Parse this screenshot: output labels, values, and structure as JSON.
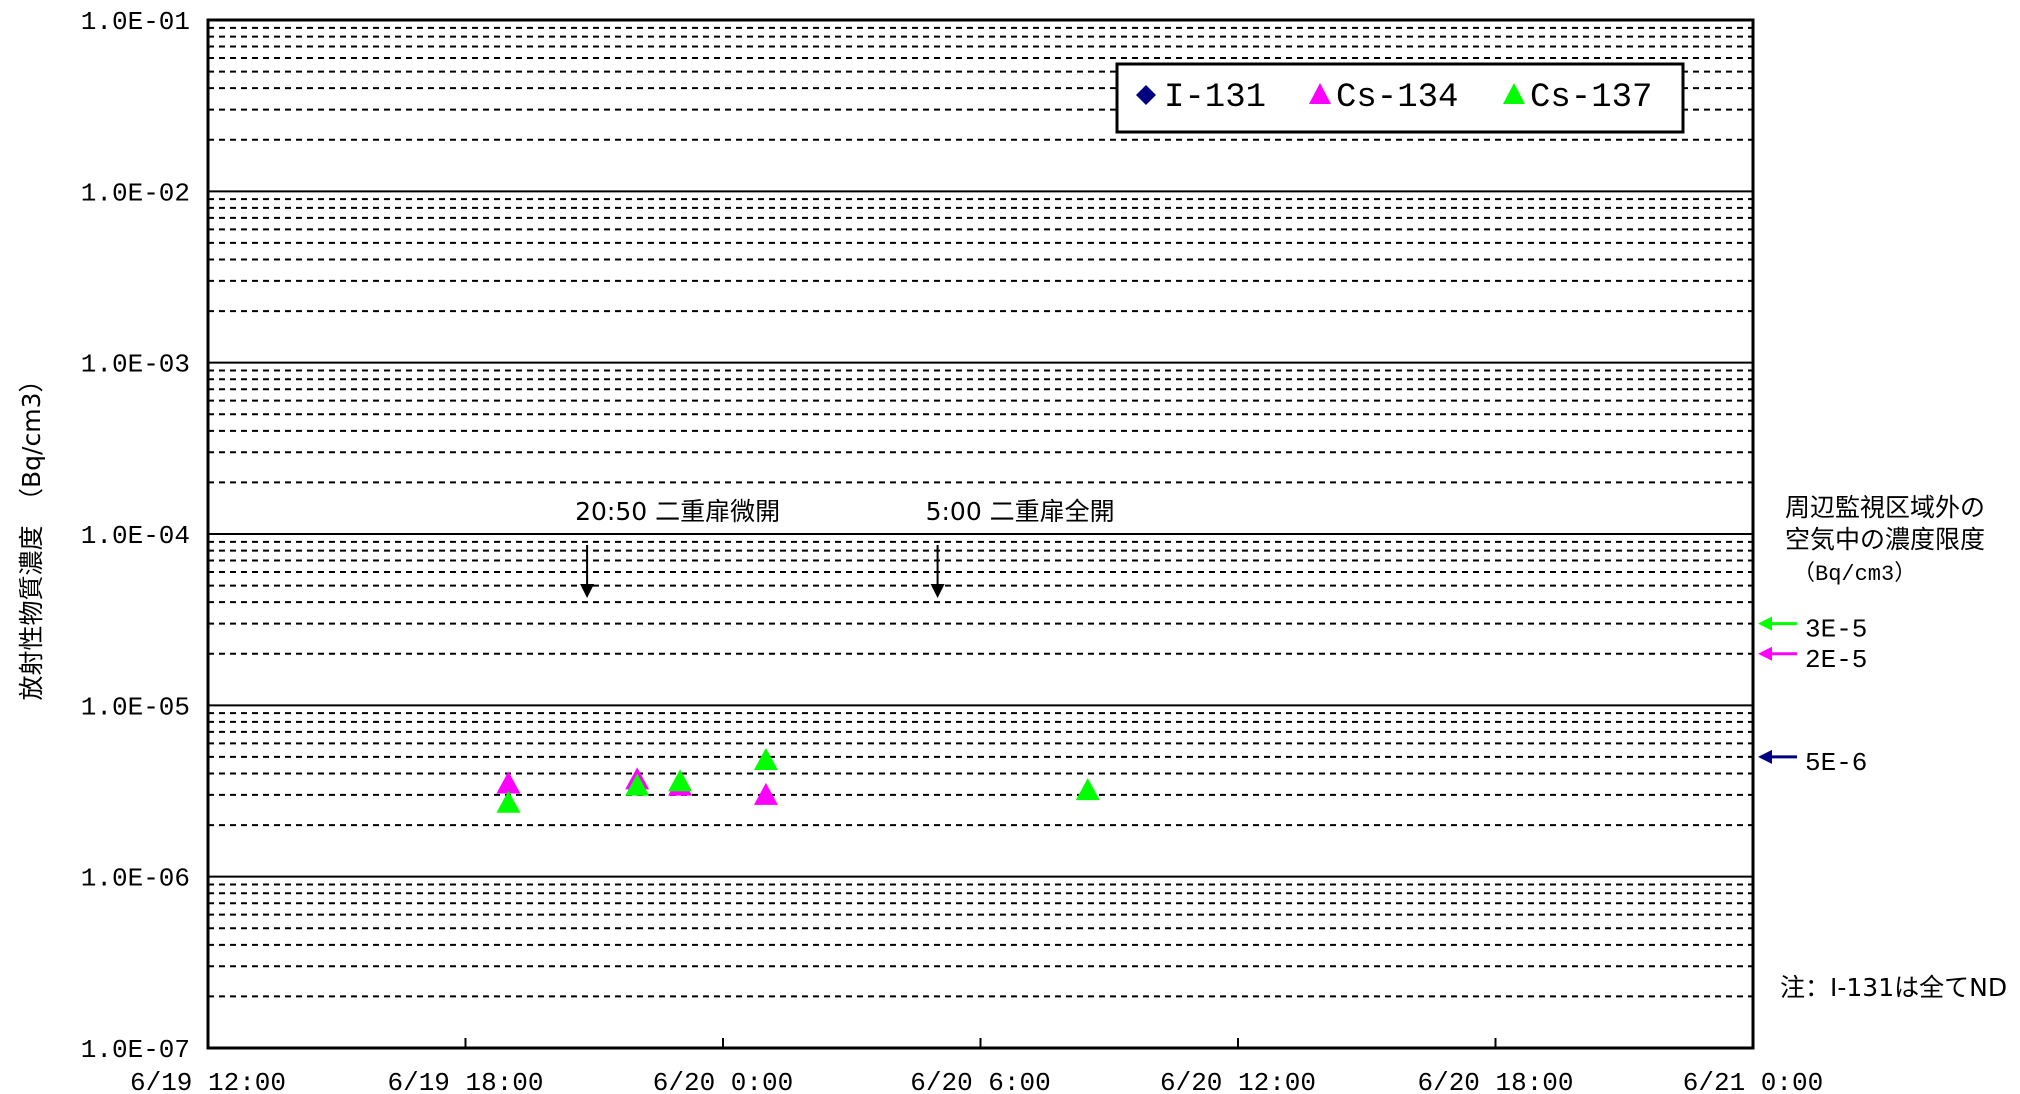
{
  "chart_data": {
    "type": "scatter",
    "title": "",
    "xlabel": "",
    "ylabel": "放射性物質濃度　（Bq/cm3）",
    "y_scale": "log",
    "ylim": [
      "1.0E-07",
      "1.0E-01"
    ],
    "y_ticks": [
      "1.0E-01",
      "1.0E-02",
      "1.0E-03",
      "1.0E-04",
      "1.0E-05",
      "1.0E-06",
      "1.0E-07"
    ],
    "xlim": [
      "6/19 12:00",
      "6/21 0:00"
    ],
    "x_ticks": [
      "6/19 12:00",
      "6/19 18:00",
      "6/20 0:00",
      "6/20 6:00",
      "6/20 12:00",
      "6/20 18:00",
      "6/21 0:00"
    ],
    "grid": true,
    "legend_position": "top-right",
    "series": [
      {
        "name": "I-131",
        "marker": "diamond",
        "color": "#000080",
        "points": []
      },
      {
        "name": "Cs-134",
        "marker": "triangle",
        "color": "#ff00ff",
        "points": [
          {
            "x": "6/19 19:00",
            "y": 3.5e-06
          },
          {
            "x": "6/19 22:00",
            "y": 3.7e-06
          },
          {
            "x": "6/19 23:00",
            "y": 3.4e-06
          },
          {
            "x": "6/20 1:00",
            "y": 3e-06
          }
        ]
      },
      {
        "name": "Cs-137",
        "marker": "triangle",
        "color": "#00ff00",
        "points": [
          {
            "x": "6/19 19:00",
            "y": 2.7e-06
          },
          {
            "x": "6/19 22:00",
            "y": 3.4e-06
          },
          {
            "x": "6/19 23:00",
            "y": 3.6e-06
          },
          {
            "x": "6/20 1:00",
            "y": 4.8e-06
          },
          {
            "x": "6/20 8:30",
            "y": 3.2e-06
          }
        ]
      }
    ],
    "annotations": [
      {
        "text": "20:50 二重扉微開",
        "x": "6/19 20:50"
      },
      {
        "text": "5:00 二重扉全開",
        "x": "6/20 5:00"
      }
    ],
    "limit_title": [
      "周辺監視区域外の",
      "空気中の濃度限度"
    ],
    "limit_unit": "（Bq/cm3）",
    "limits": [
      {
        "label": "3E-5",
        "value": 3e-05,
        "color": "#00ff00"
      },
      {
        "label": "2E-5",
        "value": 2e-05,
        "color": "#ff00ff"
      },
      {
        "label": "5E-6",
        "value": 5e-06,
        "color": "#000080"
      }
    ],
    "note": "注：I-131は全てND"
  }
}
